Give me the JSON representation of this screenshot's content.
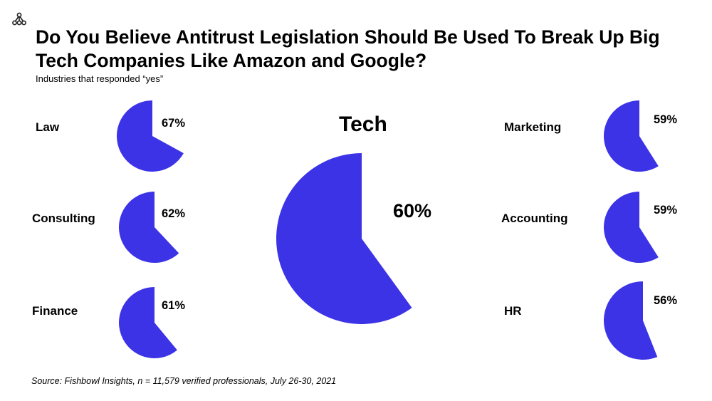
{
  "title": "Do You Believe Antitrust Legislation Should Be Used To Break Up Big Tech Companies Like Amazon and Google?",
  "subtitle": "Industries that responded “yes”",
  "source": "Source: Fishbowl Insights, n = 11,579 verified professionals, July 26-30, 2021",
  "logo_icon": "network-nodes-icon",
  "colors": {
    "pie": "#3c33e7",
    "text": "#000000",
    "background": "#ffffff"
  },
  "chart_data": {
    "type": "pie",
    "title": "Do You Believe Antitrust Legislation Should Be Used To Break Up Big Tech Companies Like Amazon and Google?",
    "subtitle": "Industries that responded “yes”",
    "unit": "%",
    "items": [
      {
        "name": "Law",
        "value": 67,
        "label": "67%"
      },
      {
        "name": "Consulting",
        "value": 62,
        "label": "62%"
      },
      {
        "name": "Finance",
        "value": 61,
        "label": "61%"
      },
      {
        "name": "Tech",
        "value": 60,
        "label": "60%"
      },
      {
        "name": "Marketing",
        "value": 59,
        "label": "59%"
      },
      {
        "name": "Accounting",
        "value": 59,
        "label": "59%"
      },
      {
        "name": "HR",
        "value": 56,
        "label": "56%"
      }
    ]
  }
}
